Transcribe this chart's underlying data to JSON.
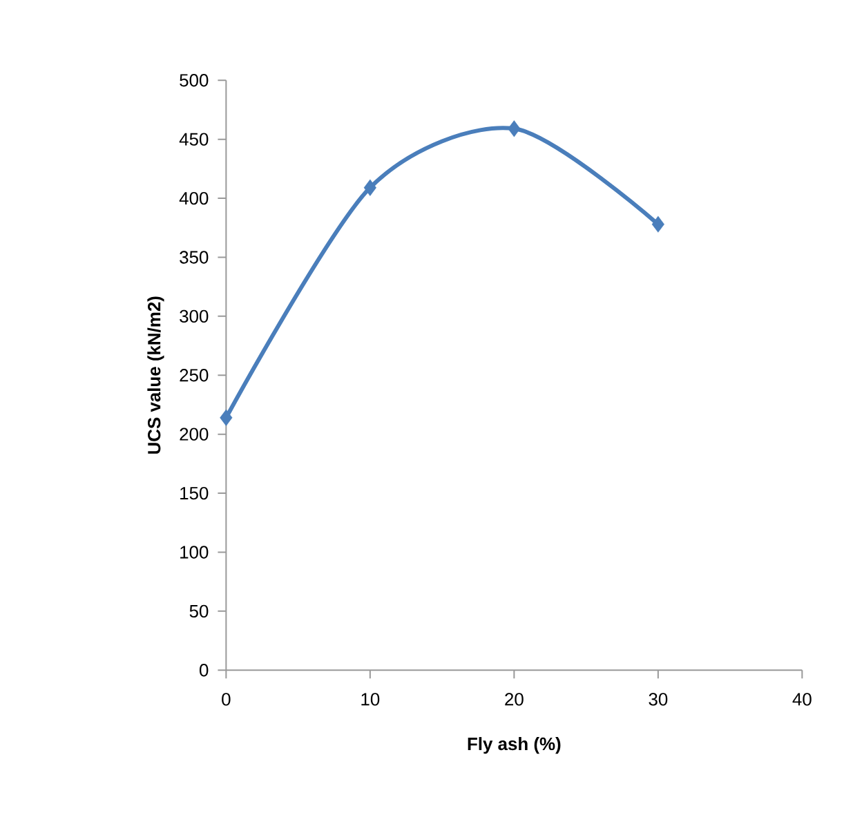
{
  "chart_data": {
    "type": "line",
    "xlabel": "Fly ash (%)",
    "ylabel": "UCS value (kN/m2)",
    "x": [
      0,
      10,
      20,
      30
    ],
    "series": [
      {
        "color": "#4a7ebb",
        "values": [
          214,
          409,
          459,
          378
        ]
      }
    ],
    "xlim": [
      0,
      40
    ],
    "xticks": [
      0,
      10,
      20,
      30,
      40
    ],
    "ylim": [
      0,
      500
    ],
    "yticks": [
      0,
      50,
      100,
      150,
      200,
      250,
      300,
      350,
      400,
      450,
      500
    ],
    "marker": "diamond",
    "line_style": "solid"
  }
}
